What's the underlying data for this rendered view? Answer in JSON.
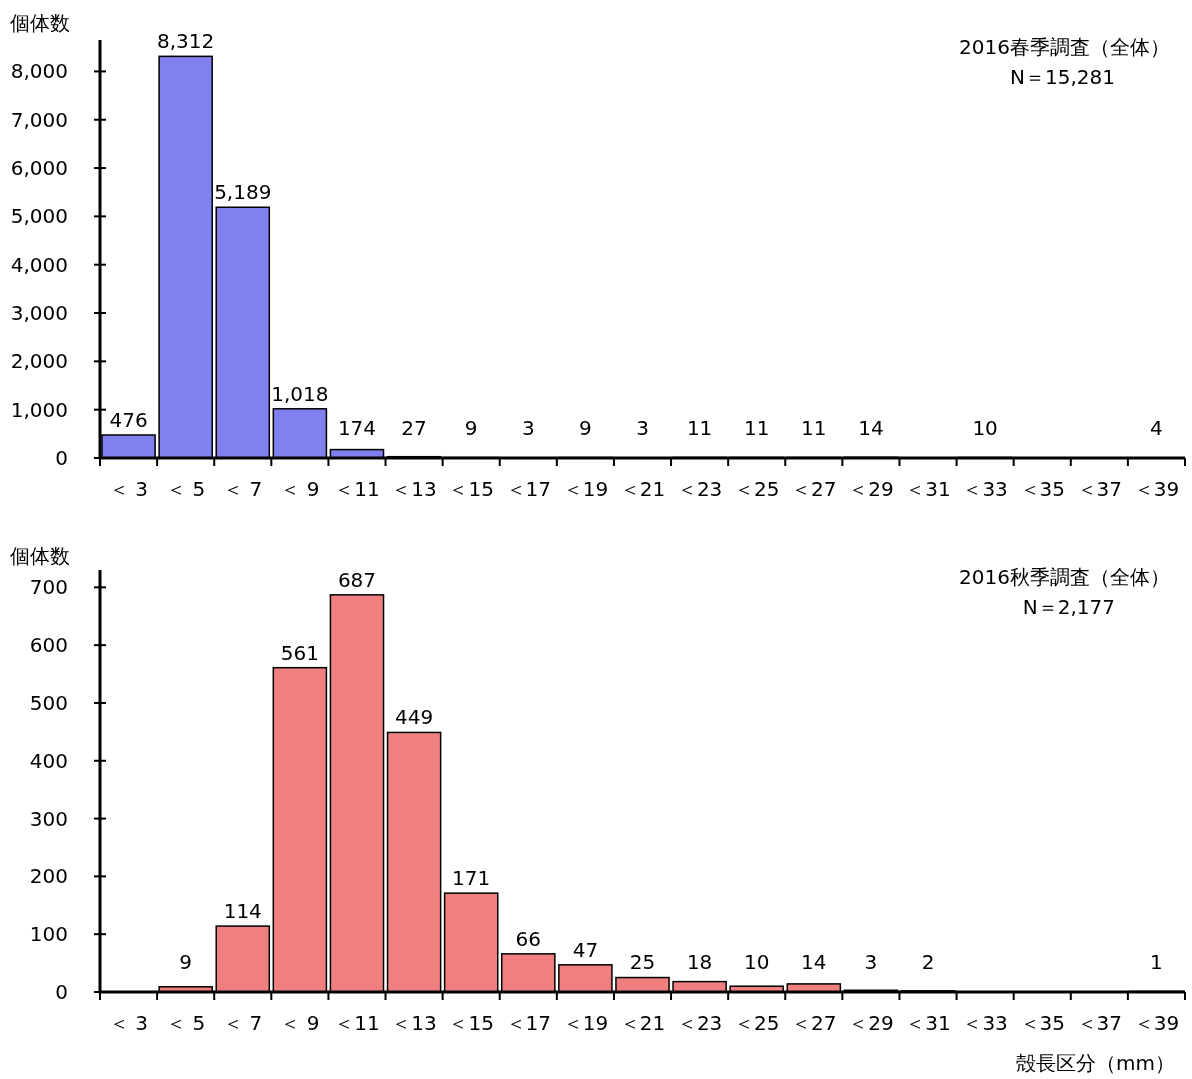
{
  "chart_data": [
    {
      "type": "bar",
      "ylabel": "個体数",
      "annotations": [
        "2016春季調査（全体）",
        "N＝15,281"
      ],
      "color": "#8080ee",
      "categories": [
        "＜ 3",
        "＜ 5",
        "＜ 7",
        "＜ 9",
        "＜11",
        "＜13",
        "＜15",
        "＜17",
        "＜19",
        "＜21",
        "＜23",
        "＜25",
        "＜27",
        "＜29",
        "＜31",
        "＜33",
        "＜35",
        "＜37",
        "＜39"
      ],
      "values": [
        476,
        8312,
        5189,
        1018,
        174,
        27,
        9,
        3,
        9,
        3,
        11,
        11,
        11,
        14,
        0,
        10,
        0,
        0,
        4
      ],
      "value_labels": [
        "476",
        "8,312",
        "5,189",
        "1,018",
        "174",
        "27",
        "9",
        "3",
        "9",
        "3",
        "11",
        "11",
        "11",
        "14",
        null,
        "10",
        null,
        null,
        "4"
      ],
      "ylim": [
        0,
        8650
      ],
      "yticks": [
        0,
        {
          "value": 1000,
          "label": "1,000"
        },
        {
          "value": 2000,
          "label": "2,000"
        },
        {
          "value": 3000,
          "label": "3,000"
        },
        {
          "value": 4000,
          "label": "4,000"
        },
        {
          "value": 5000,
          "label": "5,000"
        },
        {
          "value": 6000,
          "label": "6,000"
        },
        {
          "value": 7000,
          "label": "7,000"
        },
        {
          "value": 8000,
          "label": "8,000"
        }
      ]
    },
    {
      "type": "bar",
      "ylabel": "個体数",
      "xlabel": "殻長区分（mm）",
      "annotations": [
        "2016秋季調査（全体）",
        "N＝2,177"
      ],
      "color": "#f08080",
      "categories": [
        "＜ 3",
        "＜ 5",
        "＜ 7",
        "＜ 9",
        "＜11",
        "＜13",
        "＜15",
        "＜17",
        "＜19",
        "＜21",
        "＜23",
        "＜25",
        "＜27",
        "＜29",
        "＜31",
        "＜33",
        "＜35",
        "＜37",
        "＜39"
      ],
      "values": [
        0,
        9,
        114,
        561,
        687,
        449,
        171,
        66,
        47,
        25,
        18,
        10,
        14,
        3,
        2,
        0,
        0,
        0,
        1
      ],
      "value_labels": [
        null,
        "9",
        "114",
        "561",
        "687",
        "449",
        "171",
        "66",
        "47",
        "25",
        "18",
        "10",
        "14",
        "3",
        "2",
        null,
        null,
        null,
        "1"
      ],
      "ylim": [
        0,
        730
      ],
      "yticks": [
        0,
        100,
        200,
        300,
        400,
        500,
        600,
        700
      ]
    }
  ]
}
